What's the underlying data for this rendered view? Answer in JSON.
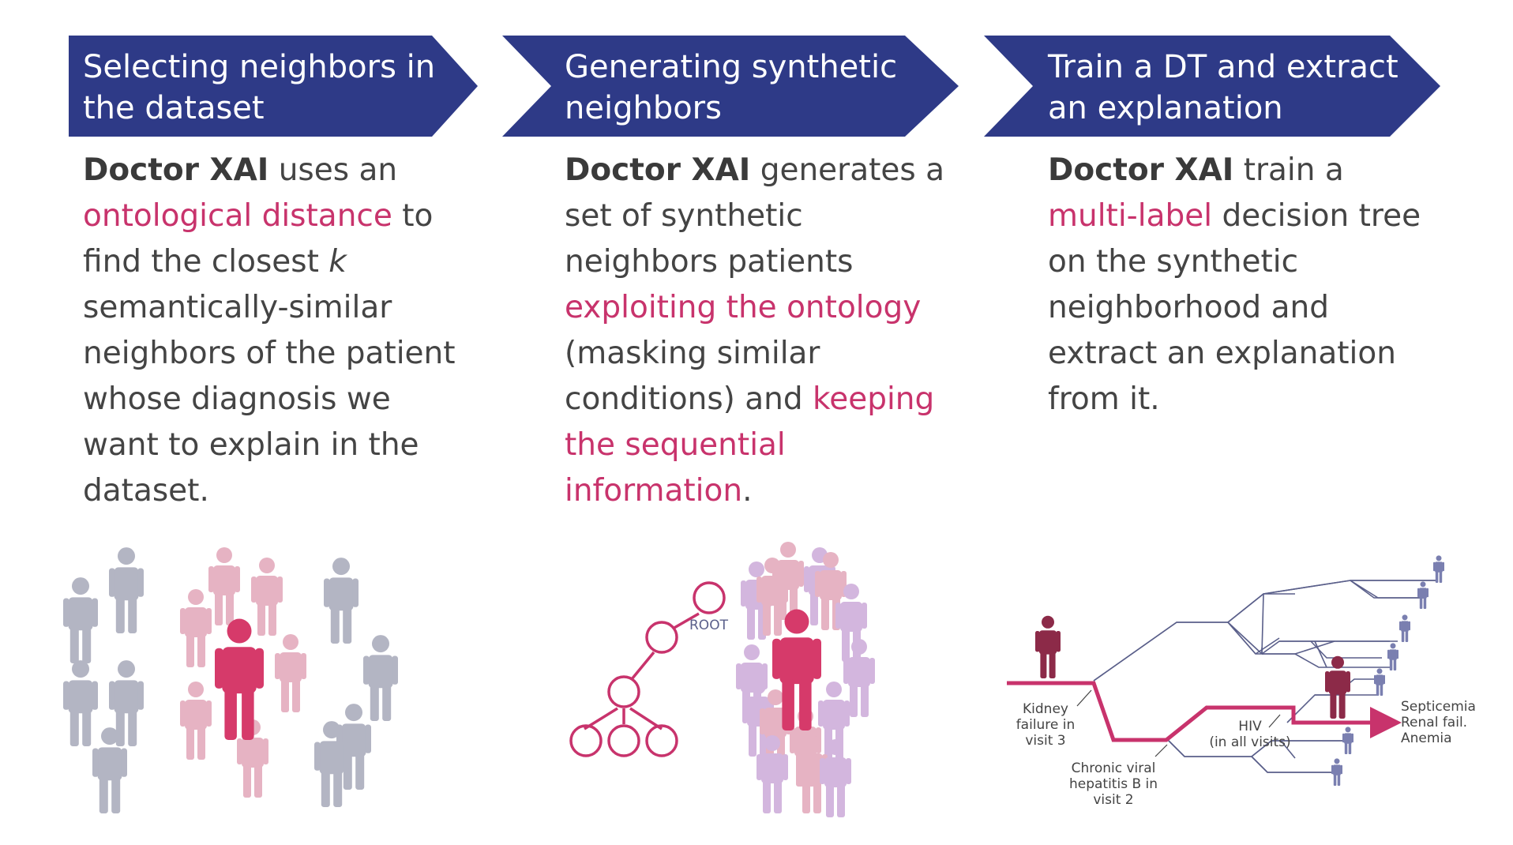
{
  "steps": [
    {
      "header_line1": "Selecting neighbors in",
      "header_line2": "the dataset",
      "desc": {
        "l1_b": "Doctor XAI",
        "l1_t": " uses an",
        "l2_h": "ontological distance",
        "l2_t": " to",
        "l3_t": "find the closest ",
        "l3_i": "k",
        "l4_t": "semantically-similar",
        "l5_t": "neighbors of the patient",
        "l6_t": "whose diagnosis we",
        "l7_t": "want to explain in the",
        "l8_t": "dataset."
      }
    },
    {
      "header_line1": "Generating synthetic",
      "header_line2": "neighbors",
      "desc": {
        "l1_b": "Doctor XAI",
        "l1_t": " generates a",
        "l2_t": "set of synthetic",
        "l3_t": "neighbors patients",
        "l4_h": "exploiting the ontology",
        "l5_t": "(masking similar",
        "l6_t": "conditions) and ",
        "l6_h": "keeping",
        "l7_h": "the sequential",
        "l8_h": "information",
        "l8_t": "."
      }
    },
    {
      "header_line1": "Train a DT and extract",
      "header_line2": "an explanation",
      "desc": {
        "l1_b": "Doctor XAI",
        "l1_t": " train a",
        "l2_h": "multi-label",
        "l2_t": " decision tree",
        "l3_t": "on the synthetic",
        "l4_t": "neighborhood and",
        "l5_t": "extract an explanation",
        "l6_t": "from it."
      }
    }
  ],
  "tree_label": "ROOT",
  "dt_labels": {
    "kidney_1": "Kidney",
    "kidney_2": "failure in",
    "kidney_3": "visit 3",
    "hep_1": "Chronic viral",
    "hep_2": "hepatitis B in",
    "hep_3": "visit 2",
    "hiv_1": "HIV",
    "hiv_2": "(in all visits)",
    "out_1": "Septicemia",
    "out_2": "Renal fail.",
    "out_3": "Anemia"
  },
  "colors": {
    "header_bg": "#2e3a87",
    "highlight": "#c8336c",
    "gray_person": "#b3b5c3",
    "pink_person": "#e6b3c3",
    "magenta_person": "#d63a6a",
    "lilac_person": "#d3b6de",
    "maroon_person": "#8c2a48",
    "path": "#c8336c",
    "tree_lines": "#5a5f8a"
  }
}
